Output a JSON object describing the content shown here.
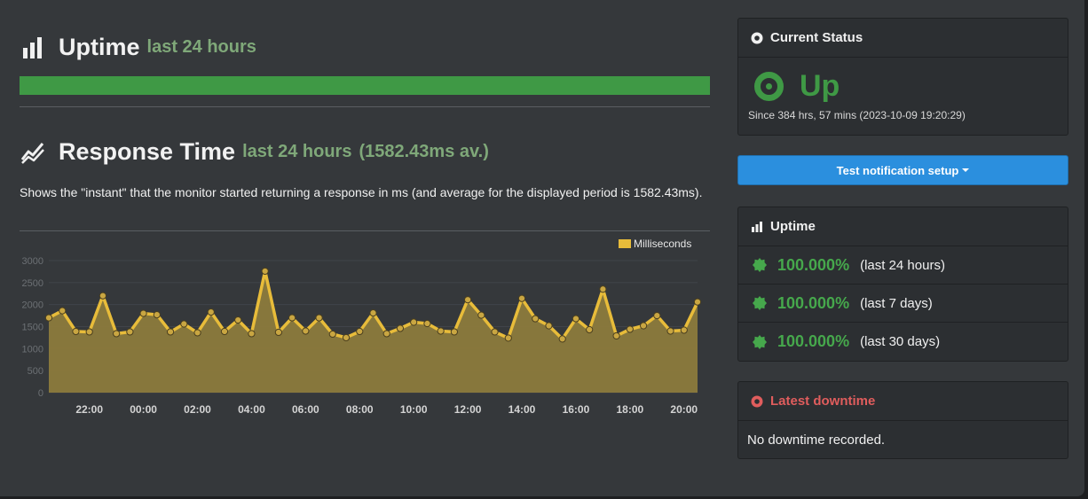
{
  "uptime_header": {
    "title": "Uptime",
    "subtitle": "last 24 hours"
  },
  "response_header": {
    "title": "Response Time",
    "subtitle": "last 24 hours",
    "average": "(1582.43ms av.)"
  },
  "response_description": "Shows the \"instant\" that the monitor started returning a response in ms (and average for the displayed period is 1582.43ms).",
  "uptime_bar": {
    "uptime_fraction": 1.0,
    "color": "#3f9945"
  },
  "current_status": {
    "title": "Current Status",
    "state": "Up",
    "since": "Since 384 hrs, 57 mins (2023-10-09 19:20:29)",
    "color": "#3f9945"
  },
  "test_button": {
    "label": "Test notification setup"
  },
  "uptime_panel": {
    "title": "Uptime",
    "rows": [
      {
        "percent": "100.000%",
        "period": "(last 24 hours)"
      },
      {
        "percent": "100.000%",
        "period": "(last 7 days)"
      },
      {
        "percent": "100.000%",
        "period": "(last 30 days)"
      }
    ]
  },
  "downtime_panel": {
    "title": "Latest downtime",
    "message": "No downtime recorded."
  },
  "chart_data": {
    "type": "area",
    "series": [
      {
        "name": "Milliseconds",
        "color": "#e8bc3a",
        "fill": "#8c7a3c",
        "values": [
          1700,
          1860,
          1390,
          1380,
          2200,
          1340,
          1380,
          1800,
          1770,
          1380,
          1560,
          1360,
          1830,
          1390,
          1650,
          1340,
          2760,
          1370,
          1700,
          1400,
          1700,
          1330,
          1250,
          1390,
          1810,
          1340,
          1460,
          1600,
          1570,
          1400,
          1380,
          2110,
          1760,
          1380,
          1240,
          2140,
          1680,
          1520,
          1220,
          1680,
          1430,
          2350,
          1290,
          1440,
          1520,
          1750,
          1400,
          1420,
          2060
        ]
      }
    ],
    "x_ticks": [
      "22:00",
      "00:00",
      "02:00",
      "04:00",
      "06:00",
      "08:00",
      "10:00",
      "12:00",
      "14:00",
      "16:00",
      "18:00",
      "20:00"
    ],
    "y_ticks": [
      0,
      500,
      1000,
      1500,
      2000,
      2500,
      3000
    ],
    "ylim": [
      0,
      3000
    ],
    "x_start_hour": 20.5,
    "x_end_hour": 44.5,
    "x_first_tick_hour": 22,
    "legend": "top-right",
    "grid": true
  }
}
